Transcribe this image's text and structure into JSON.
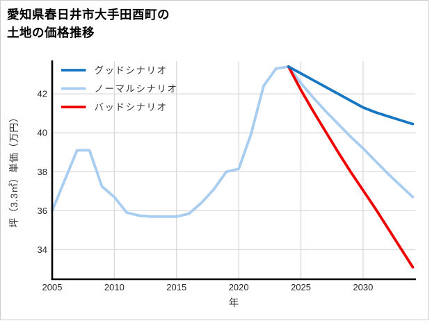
{
  "title": {
    "line1": "愛知県春日井市大手田酉町の",
    "line2": "土地の価格推移"
  },
  "chart_data": {
    "type": "line",
    "title": "愛知県春日井市大手田酉町の土地の価格推移",
    "xlabel": "年",
    "ylabel": "坪（3.3㎡）単価（万円）",
    "xlim": [
      2005,
      2034.2
    ],
    "ylim": [
      32.5,
      43.68
    ],
    "xticks": [
      2005,
      2010,
      2015,
      2020,
      2025,
      2030
    ],
    "yticks": [
      34,
      36,
      38,
      40,
      42
    ],
    "grid": true,
    "grid_color": "#d9d9d9",
    "axis_color": "#000000",
    "tick_color": "#262626",
    "label_color": "#333333",
    "legend_position": "upper-left",
    "draw_order": [
      "normal",
      "bad",
      "good"
    ],
    "series": [
      {
        "id": "good",
        "name": "グッドシナリオ",
        "color": "#1777c2",
        "points": [
          [
            2024,
            43.4
          ],
          [
            2025,
            43.05
          ],
          [
            2026,
            42.7
          ],
          [
            2027,
            42.35
          ],
          [
            2028,
            42.0
          ],
          [
            2029,
            41.65
          ],
          [
            2030,
            41.3
          ],
          [
            2031,
            41.05
          ],
          [
            2032,
            40.85
          ],
          [
            2033,
            40.65
          ],
          [
            2034,
            40.45
          ]
        ]
      },
      {
        "id": "normal",
        "name": "ノーマルシナリオ",
        "color": "#a9cdf0",
        "points": [
          [
            2005,
            36.0
          ],
          [
            2006,
            37.55
          ],
          [
            2007,
            39.1
          ],
          [
            2008,
            39.1
          ],
          [
            2009,
            37.25
          ],
          [
            2010,
            36.7
          ],
          [
            2011,
            35.9
          ],
          [
            2012,
            35.75
          ],
          [
            2013,
            35.7
          ],
          [
            2014,
            35.7
          ],
          [
            2015,
            35.7
          ],
          [
            2016,
            35.85
          ],
          [
            2017,
            36.4
          ],
          [
            2018,
            37.1
          ],
          [
            2019,
            38.0
          ],
          [
            2020,
            38.15
          ],
          [
            2021,
            39.95
          ],
          [
            2022,
            42.4
          ],
          [
            2023,
            43.3
          ],
          [
            2024,
            43.4
          ],
          [
            2025,
            42.55
          ],
          [
            2026,
            41.8
          ],
          [
            2027,
            41.1
          ],
          [
            2028,
            40.45
          ],
          [
            2029,
            39.8
          ],
          [
            2030,
            39.2
          ],
          [
            2031,
            38.55
          ],
          [
            2032,
            37.9
          ],
          [
            2033,
            37.3
          ],
          [
            2034,
            36.7
          ]
        ]
      },
      {
        "id": "bad",
        "name": "バッドシナリオ",
        "color": "#ee0000",
        "points": [
          [
            2024,
            43.4
          ],
          [
            2025,
            42.2
          ],
          [
            2026,
            41.1
          ],
          [
            2027,
            40.05
          ],
          [
            2028,
            39.0
          ],
          [
            2029,
            38.0
          ],
          [
            2030,
            37.05
          ],
          [
            2031,
            36.1
          ],
          [
            2032,
            35.1
          ],
          [
            2033,
            34.1
          ],
          [
            2034,
            33.1
          ]
        ]
      }
    ]
  }
}
